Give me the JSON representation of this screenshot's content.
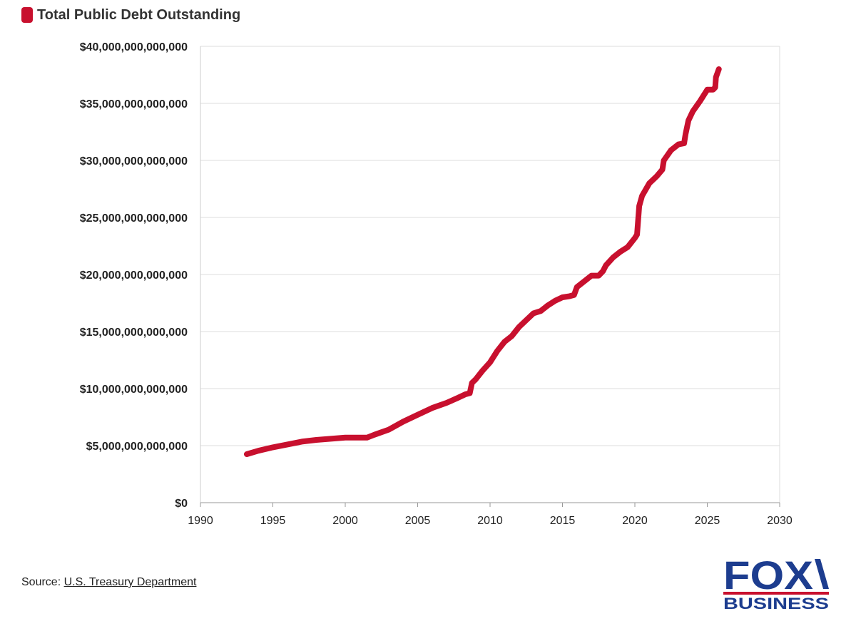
{
  "legend": {
    "label": "Total Public Debt Outstanding",
    "color": "#c8102e"
  },
  "source": {
    "prefix": "Source: ",
    "link_text": "U.S. Treasury Department"
  },
  "logo": {
    "top_text": "FOX",
    "bottom_text": "BUSINESS",
    "primary_color": "#1d3d8f",
    "accent_color": "#c8102e"
  },
  "chart_data": {
    "type": "line",
    "title": "",
    "xlabel": "",
    "ylabel": "",
    "xlim": [
      1990,
      2030
    ],
    "ylim": [
      0,
      40000000000000
    ],
    "x_ticks": [
      1990,
      1995,
      2000,
      2005,
      2010,
      2015,
      2020,
      2025,
      2030
    ],
    "x_tick_labels": [
      "1990",
      "1995",
      "2000",
      "2005",
      "2010",
      "2015",
      "2020",
      "2025",
      "2030"
    ],
    "y_ticks": [
      0,
      5000000000000,
      10000000000000,
      15000000000000,
      20000000000000,
      25000000000000,
      30000000000000,
      35000000000000,
      40000000000000
    ],
    "y_tick_labels": [
      "$0",
      "$5,000,000,000,000",
      "$10,000,000,000,000",
      "$15,000,000,000,000",
      "$20,000,000,000,000",
      "$25,000,000,000,000",
      "$30,000,000,000,000",
      "$35,000,000,000,000",
      "$40,000,000,000,000"
    ],
    "grid": true,
    "legend_position": "top-left",
    "series": [
      {
        "name": "Total Public Debt Outstanding",
        "color": "#c8102e",
        "x": [
          1993.2,
          1994.0,
          1995.0,
          1996.0,
          1997.0,
          1998.0,
          1999.0,
          2000.0,
          2001.0,
          2001.5,
          2002.0,
          2003.0,
          2004.0,
          2005.0,
          2006.0,
          2007.0,
          2007.8,
          2008.3,
          2008.6,
          2008.75,
          2009.0,
          2009.5,
          2010.0,
          2010.5,
          2011.0,
          2011.5,
          2012.0,
          2012.5,
          2013.0,
          2013.5,
          2014.0,
          2014.5,
          2015.0,
          2015.5,
          2015.8,
          2016.0,
          2016.5,
          2017.0,
          2017.5,
          2017.8,
          2018.0,
          2018.5,
          2019.0,
          2019.5,
          2020.0,
          2020.15,
          2020.3,
          2020.5,
          2021.0,
          2021.5,
          2021.9,
          2022.0,
          2022.5,
          2023.0,
          2023.4,
          2023.5,
          2023.7,
          2024.0,
          2024.5,
          2024.9,
          2025.0,
          2025.4,
          2025.55,
          2025.6,
          2025.8
        ],
        "values": [
          4250000000000,
          4550000000000,
          4850000000000,
          5100000000000,
          5350000000000,
          5500000000000,
          5600000000000,
          5700000000000,
          5700000000000,
          5700000000000,
          5950000000000,
          6400000000000,
          7100000000000,
          7700000000000,
          8300000000000,
          8750000000000,
          9200000000000,
          9500000000000,
          9600000000000,
          10500000000000,
          10800000000000,
          11600000000000,
          12300000000000,
          13300000000000,
          14100000000000,
          14600000000000,
          15400000000000,
          16000000000000,
          16600000000000,
          16800000000000,
          17300000000000,
          17700000000000,
          18000000000000,
          18100000000000,
          18200000000000,
          18900000000000,
          19400000000000,
          19900000000000,
          19900000000000,
          20300000000000,
          20800000000000,
          21500000000000,
          22000000000000,
          22400000000000,
          23200000000000,
          23500000000000,
          26000000000000,
          26900000000000,
          28000000000000,
          28600000000000,
          29200000000000,
          30000000000000,
          30900000000000,
          31400000000000,
          31500000000000,
          32300000000000,
          33500000000000,
          34300000000000,
          35200000000000,
          36000000000000,
          36200000000000,
          36200000000000,
          36400000000000,
          37300000000000,
          38000000000000
        ]
      }
    ]
  }
}
